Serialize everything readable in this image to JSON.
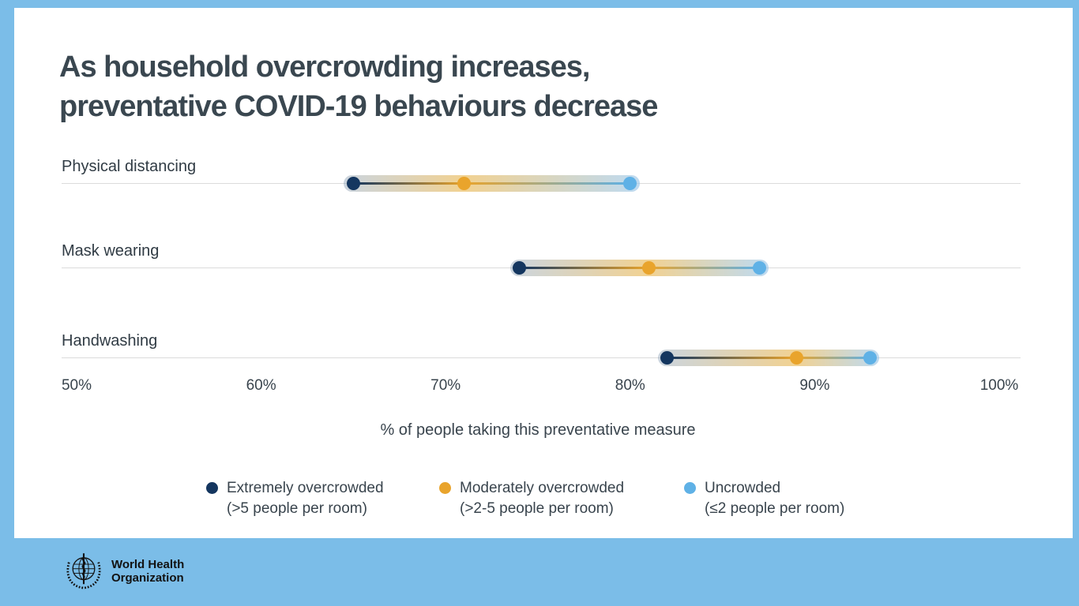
{
  "header": {
    "title_line1": "As household overcrowding increases,",
    "title_line2": "preventative COVID-19 behaviours decrease"
  },
  "chart_data": {
    "type": "scatter",
    "subtype": "dumbbell-dot-plot",
    "title": "As household overcrowding increases, preventative COVID-19 behaviours decrease",
    "categories": [
      "Physical distancing",
      "Mask wearing",
      "Handwashing"
    ],
    "series": [
      {
        "name": "Extremely overcrowded (>5 people per room)",
        "color": "#14365F",
        "values": [
          65,
          74,
          82
        ]
      },
      {
        "name": "Moderately overcrowded (>2-5 people per room)",
        "color": "#E9A42C",
        "values": [
          71,
          81,
          89
        ]
      },
      {
        "name": "Uncrowded (≤2 people per room)",
        "color": "#5FB1E6",
        "values": [
          80,
          87,
          93
        ]
      }
    ],
    "xlabel": "% of people taking this preventative measure",
    "xlim": [
      50,
      100
    ],
    "x_ticks": [
      {
        "value": 50,
        "label": "50%"
      },
      {
        "value": 60,
        "label": "60%"
      },
      {
        "value": 70,
        "label": "70%"
      },
      {
        "value": 80,
        "label": "80%"
      },
      {
        "value": 90,
        "label": "90%"
      },
      {
        "value": 100,
        "label": "100%"
      }
    ],
    "grid": "horizontal-row-lines",
    "legend_position": "bottom"
  },
  "legend": {
    "items": [
      {
        "label": "Extremely overcrowded",
        "sublabel": "(>5 people per room)",
        "color": "#14365F"
      },
      {
        "label": "Moderately overcrowded",
        "sublabel": "(>2-5 people per room)",
        "color": "#E9A42C"
      },
      {
        "label": "Uncrowded",
        "sublabel": "(≤2 people per room)",
        "color": "#5FB1E6"
      }
    ]
  },
  "footer": {
    "org_line1": "World Health",
    "org_line2": "Organization"
  },
  "colors": {
    "frame_blue": "#7BBDE8",
    "card": "#FFFFFF",
    "title_text": "#3A4750",
    "row_line": "#DBDBDB",
    "navy": "#14365F",
    "orange": "#E9A42C",
    "light_blue": "#5FB1E6"
  }
}
